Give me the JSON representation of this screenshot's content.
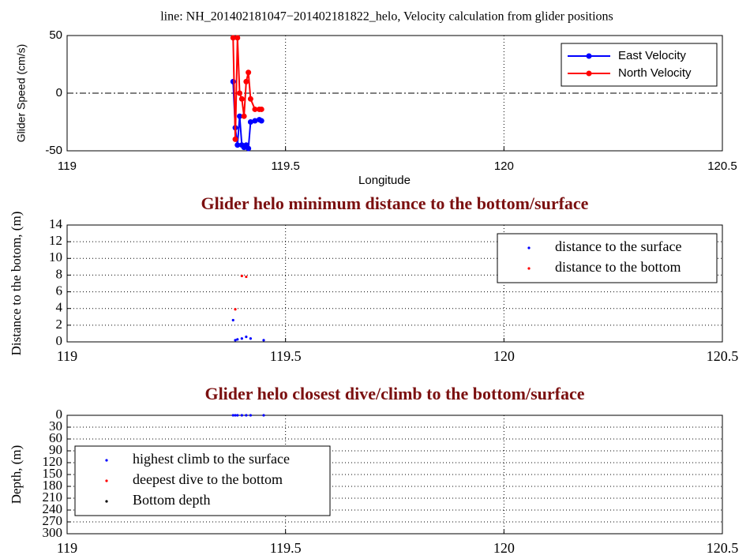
{
  "chart_data": [
    {
      "type": "line",
      "font": "sans",
      "title": "line: NH_201402181047−201402181822_helo, Velocity calculation from glider positions",
      "xlabel": "Longitude",
      "ylabel": "Glider Speed (cm/s)",
      "xlim": [
        119,
        120.5
      ],
      "xticks": [
        119,
        119.5,
        120,
        120.5
      ],
      "ylim": [
        -50,
        50
      ],
      "yticks": [
        -50,
        0,
        50
      ],
      "grid": "x",
      "zero_line": true,
      "legend": "upper right",
      "x": [
        119.38,
        119.385,
        119.39,
        119.395,
        119.4,
        119.405,
        119.41,
        119.415,
        119.42,
        119.43,
        119.44,
        119.445
      ],
      "series": [
        {
          "name": "East Velocity",
          "color": "#0000ff",
          "values": [
            10,
            -30,
            -45,
            -20,
            -45,
            -47,
            -45,
            -48,
            -25,
            -24,
            -23,
            -24
          ]
        },
        {
          "name": "North Velocity",
          "color": "#ff0000",
          "values": [
            48,
            -40,
            48,
            0,
            -5,
            -20,
            10,
            18,
            -5,
            -14,
            -14,
            -14
          ]
        }
      ]
    },
    {
      "type": "scatter",
      "font": "serif",
      "title": "Glider helo minimum distance to the bottom/surface",
      "ylabel": "Distance to the botom, (m)",
      "xlim": [
        119,
        120.5
      ],
      "xticks": [
        119,
        119.5,
        120,
        120.5
      ],
      "ylim": [
        0,
        14
      ],
      "yticks": [
        0,
        2,
        4,
        6,
        8,
        10,
        12,
        14
      ],
      "grid": "both",
      "legend": "upper right",
      "series": [
        {
          "name": "distance to the surface",
          "color": "#0000ff",
          "x": [
            119.38,
            119.385,
            119.39,
            119.4,
            119.41,
            119.42,
            119.45
          ],
          "values": [
            2.6,
            0.2,
            0.3,
            0.4,
            0.6,
            0.4,
            0.2
          ]
        },
        {
          "name": "distance to the bottom",
          "color": "#ff0000",
          "x": [
            119.385,
            119.4,
            119.41
          ],
          "values": [
            3.9,
            7.9,
            7.8
          ]
        }
      ]
    },
    {
      "type": "scatter",
      "font": "serif",
      "title": "Glider helo closest dive/climb to the bottom/surface",
      "ylabel": "Depth, (m)",
      "xlim": [
        119,
        120.5
      ],
      "xticks": [
        119,
        119.5,
        120,
        120.5
      ],
      "ylim": [
        300,
        0
      ],
      "yticks": [
        0,
        30,
        60,
        90,
        120,
        150,
        180,
        210,
        240,
        270,
        300
      ],
      "grid": "both",
      "legend": "center left",
      "series": [
        {
          "name": "highest climb to the surface",
          "color": "#0000ff",
          "x": [
            119.38,
            119.385,
            119.39,
            119.4,
            119.41,
            119.42,
            119.45
          ],
          "values": [
            0,
            0,
            0,
            0,
            0,
            0,
            0
          ]
        },
        {
          "name": "deepest dive to the bottom",
          "color": "#ff0000",
          "x": [],
          "values": []
        },
        {
          "name": "Bottom depth",
          "color": "#000000",
          "x": [],
          "values": []
        }
      ]
    }
  ]
}
